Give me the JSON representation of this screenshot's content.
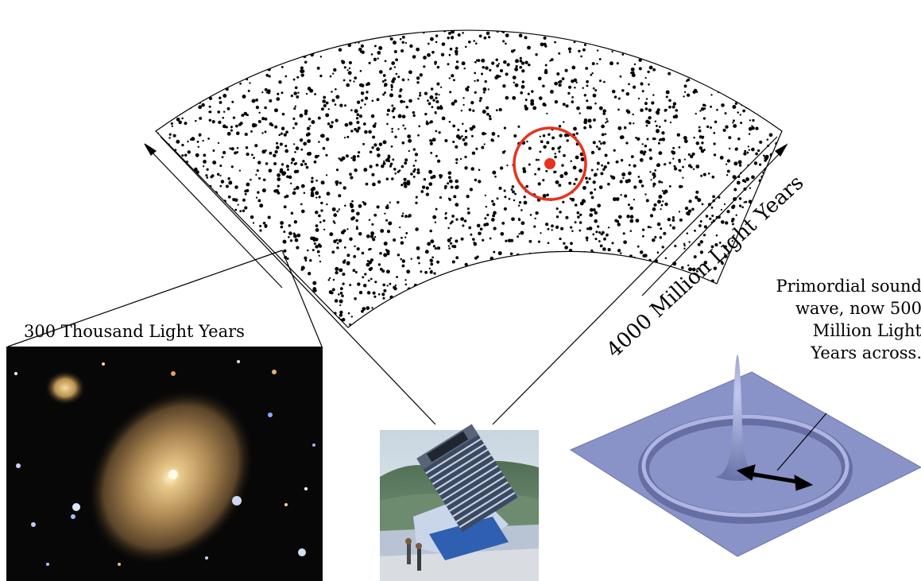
{
  "labels": {
    "galaxy_scale": "300 Thousand Light Years",
    "survey_depth": "4000 Million Light Years",
    "sound_wave": [
      "Primordial sound",
      "wave, now 500",
      "Million Light",
      "Years across."
    ]
  },
  "colors": {
    "galaxy_dot": "#000000",
    "highlight_circle": "#e8321e",
    "sound_wave_surface": "#8a93c8",
    "galaxy_photo_bg": "#070707",
    "galaxy_glow": "#caa56a"
  },
  "icons": {
    "sound_wave_arrow": "double-headed-arrow",
    "scale_arrow": "arrow-head"
  }
}
